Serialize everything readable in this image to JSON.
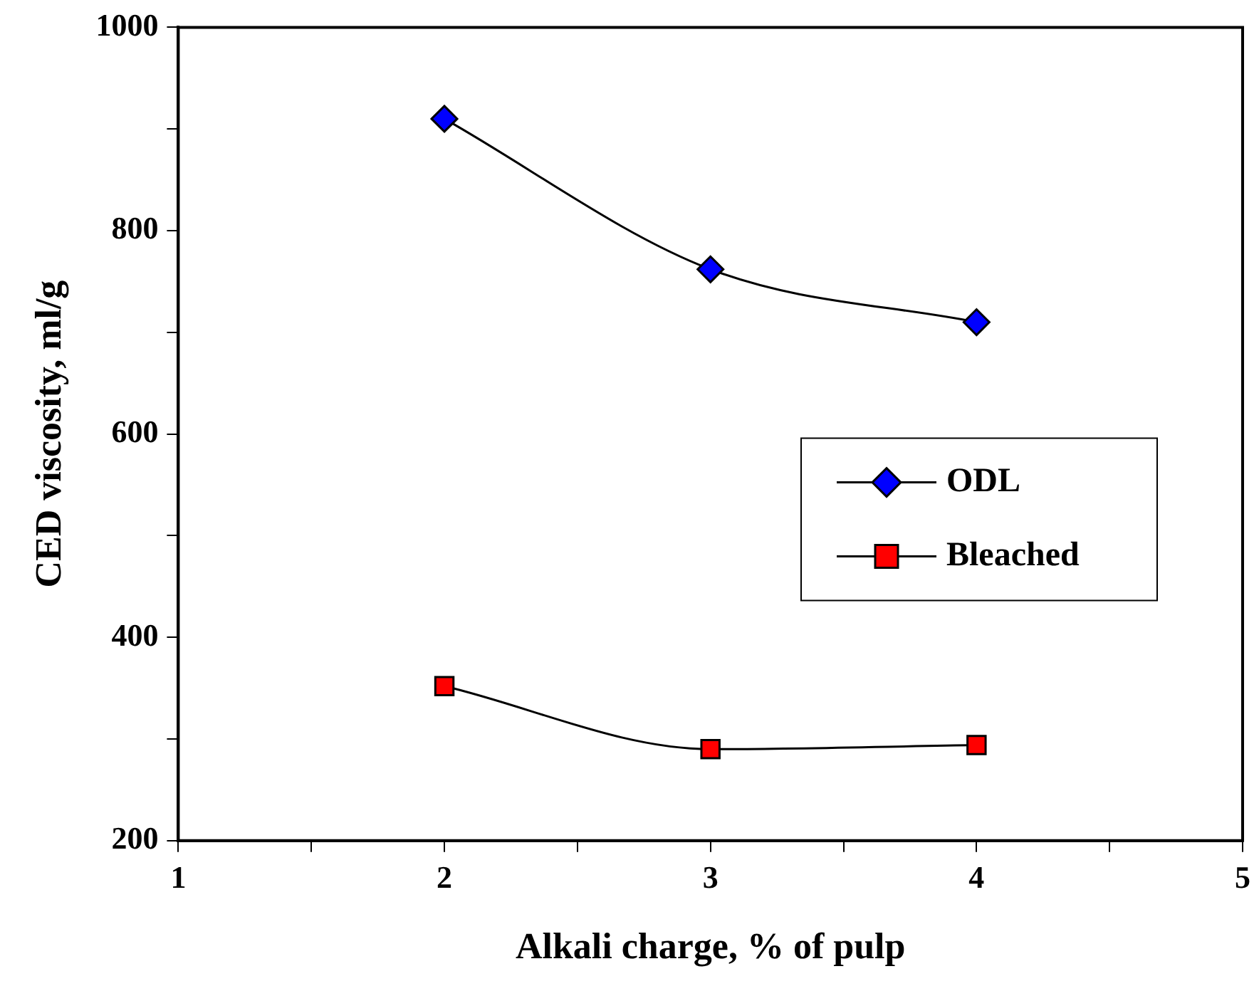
{
  "chart_data": {
    "type": "line",
    "xlabel": "Alkali charge, % of pulp",
    "ylabel": "CED viscosity, ml/g",
    "x": [
      2,
      3,
      4
    ],
    "series": [
      {
        "name": "ODL",
        "color": "#0000ff",
        "marker": "diamond",
        "values": [
          910,
          762,
          710
        ]
      },
      {
        "name": "Bleached",
        "color": "#ff0000",
        "marker": "square",
        "values": [
          352,
          290,
          294
        ]
      }
    ],
    "xlim": [
      1,
      5
    ],
    "xticks": [
      1,
      {
        "value": 1.5,
        "label": null
      },
      2,
      {
        "value": 2.5,
        "label": null
      },
      3,
      {
        "value": 3.5,
        "label": null
      },
      4,
      {
        "value": 4.5,
        "label": null
      },
      5
    ],
    "ylim": [
      200,
      1000
    ],
    "yticks": [
      200,
      {
        "value": 300,
        "label": null
      },
      400,
      {
        "value": 500,
        "label": null
      },
      600,
      {
        "value": 700,
        "label": null
      },
      800,
      {
        "value": 900,
        "label": null
      },
      1000
    ],
    "grid": false,
    "legend": "right",
    "line_style": "solid"
  }
}
